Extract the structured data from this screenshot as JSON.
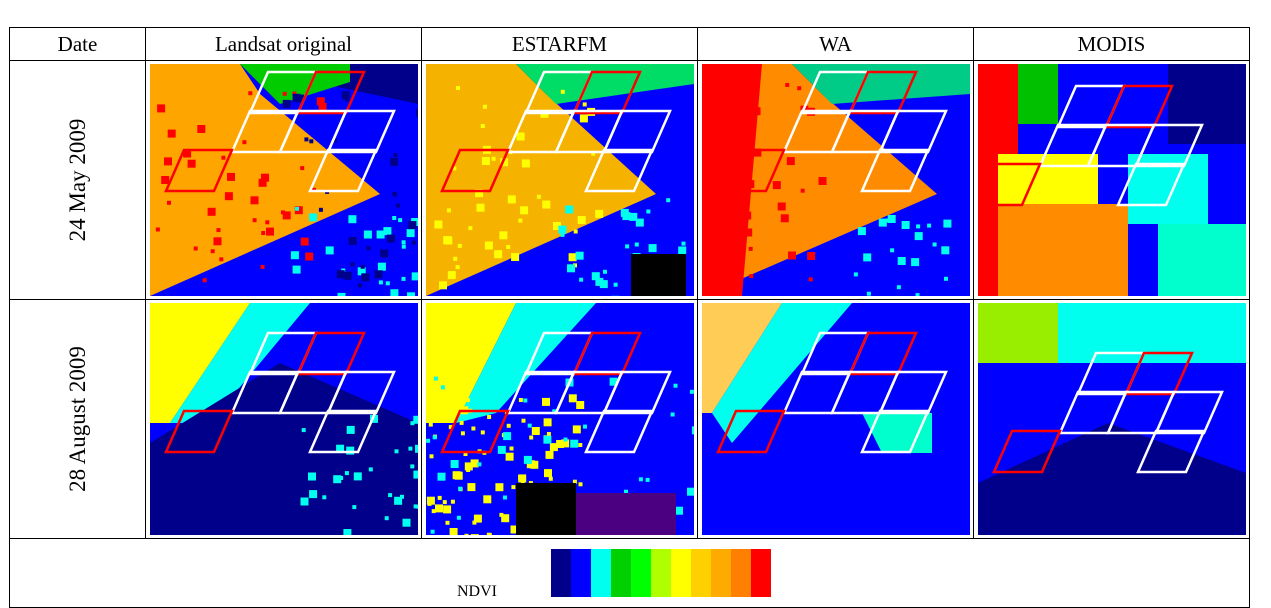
{
  "headers": [
    "Date",
    "Landsat original",
    "ESTARFM",
    "WA",
    "MODIS"
  ],
  "rows": [
    {
      "date": "24 May 2009"
    },
    {
      "date": "28 August 2009"
    }
  ],
  "legend": {
    "label": "NDVI",
    "colors": [
      "#00008b",
      "#0000ff",
      "#00ffee",
      "#00d000",
      "#00ff00",
      "#b0ff00",
      "#ffff00",
      "#ffd000",
      "#ffaa00",
      "#ff7f00",
      "#ff0000"
    ]
  },
  "palette": {
    "dark_blue": "#00008b",
    "blue": "#0000ff",
    "cyan": "#00ffee",
    "green": "#00d000",
    "yellow": "#ffff00",
    "orange": "#ffa500",
    "red": "#ff0000",
    "outline_white": "#ffffff",
    "outline_red": "#ff0000"
  }
}
